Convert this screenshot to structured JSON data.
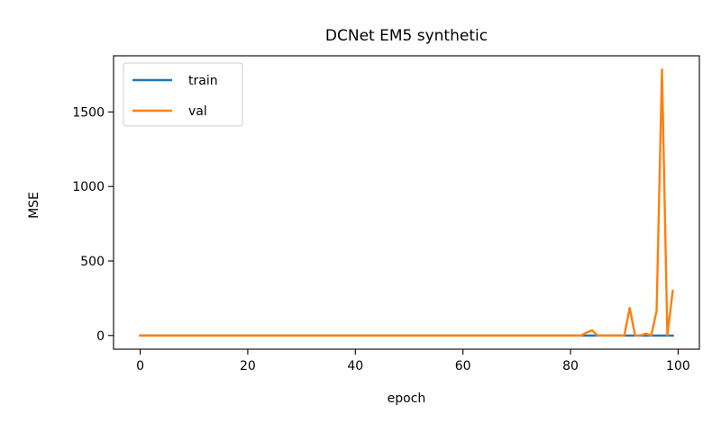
{
  "chart_data": {
    "type": "line",
    "title": "DCNet EM5 synthetic",
    "xlabel": "epoch",
    "ylabel": "MSE",
    "xlim": [
      -4.95,
      103.95
    ],
    "ylim": [
      -92,
      1877
    ],
    "xticks": [
      0,
      20,
      40,
      60,
      80,
      100
    ],
    "yticks": [
      0,
      500,
      1000,
      1500
    ],
    "grid": false,
    "legend_position": "top-left",
    "series": [
      {
        "name": "train",
        "color": "#1f77b4",
        "x": [
          0,
          10,
          20,
          30,
          40,
          50,
          60,
          70,
          80,
          85,
          90,
          95,
          99
        ],
        "y": [
          0,
          0,
          0,
          0,
          0,
          0,
          0,
          0,
          0,
          0,
          0,
          0,
          0
        ]
      },
      {
        "name": "val",
        "color": "#ff7f0e",
        "x": [
          0,
          10,
          20,
          30,
          40,
          50,
          60,
          70,
          80,
          81,
          82,
          83,
          84,
          85,
          86,
          87,
          88,
          89,
          90,
          91,
          92,
          93,
          94,
          95,
          96,
          97,
          98,
          99
        ],
        "y": [
          0,
          0,
          0,
          0,
          0,
          0,
          0,
          0,
          0,
          0,
          0,
          20,
          35,
          0,
          0,
          0,
          0,
          0,
          0,
          185,
          0,
          0,
          12,
          0,
          165,
          1785,
          0,
          300
        ]
      }
    ]
  }
}
